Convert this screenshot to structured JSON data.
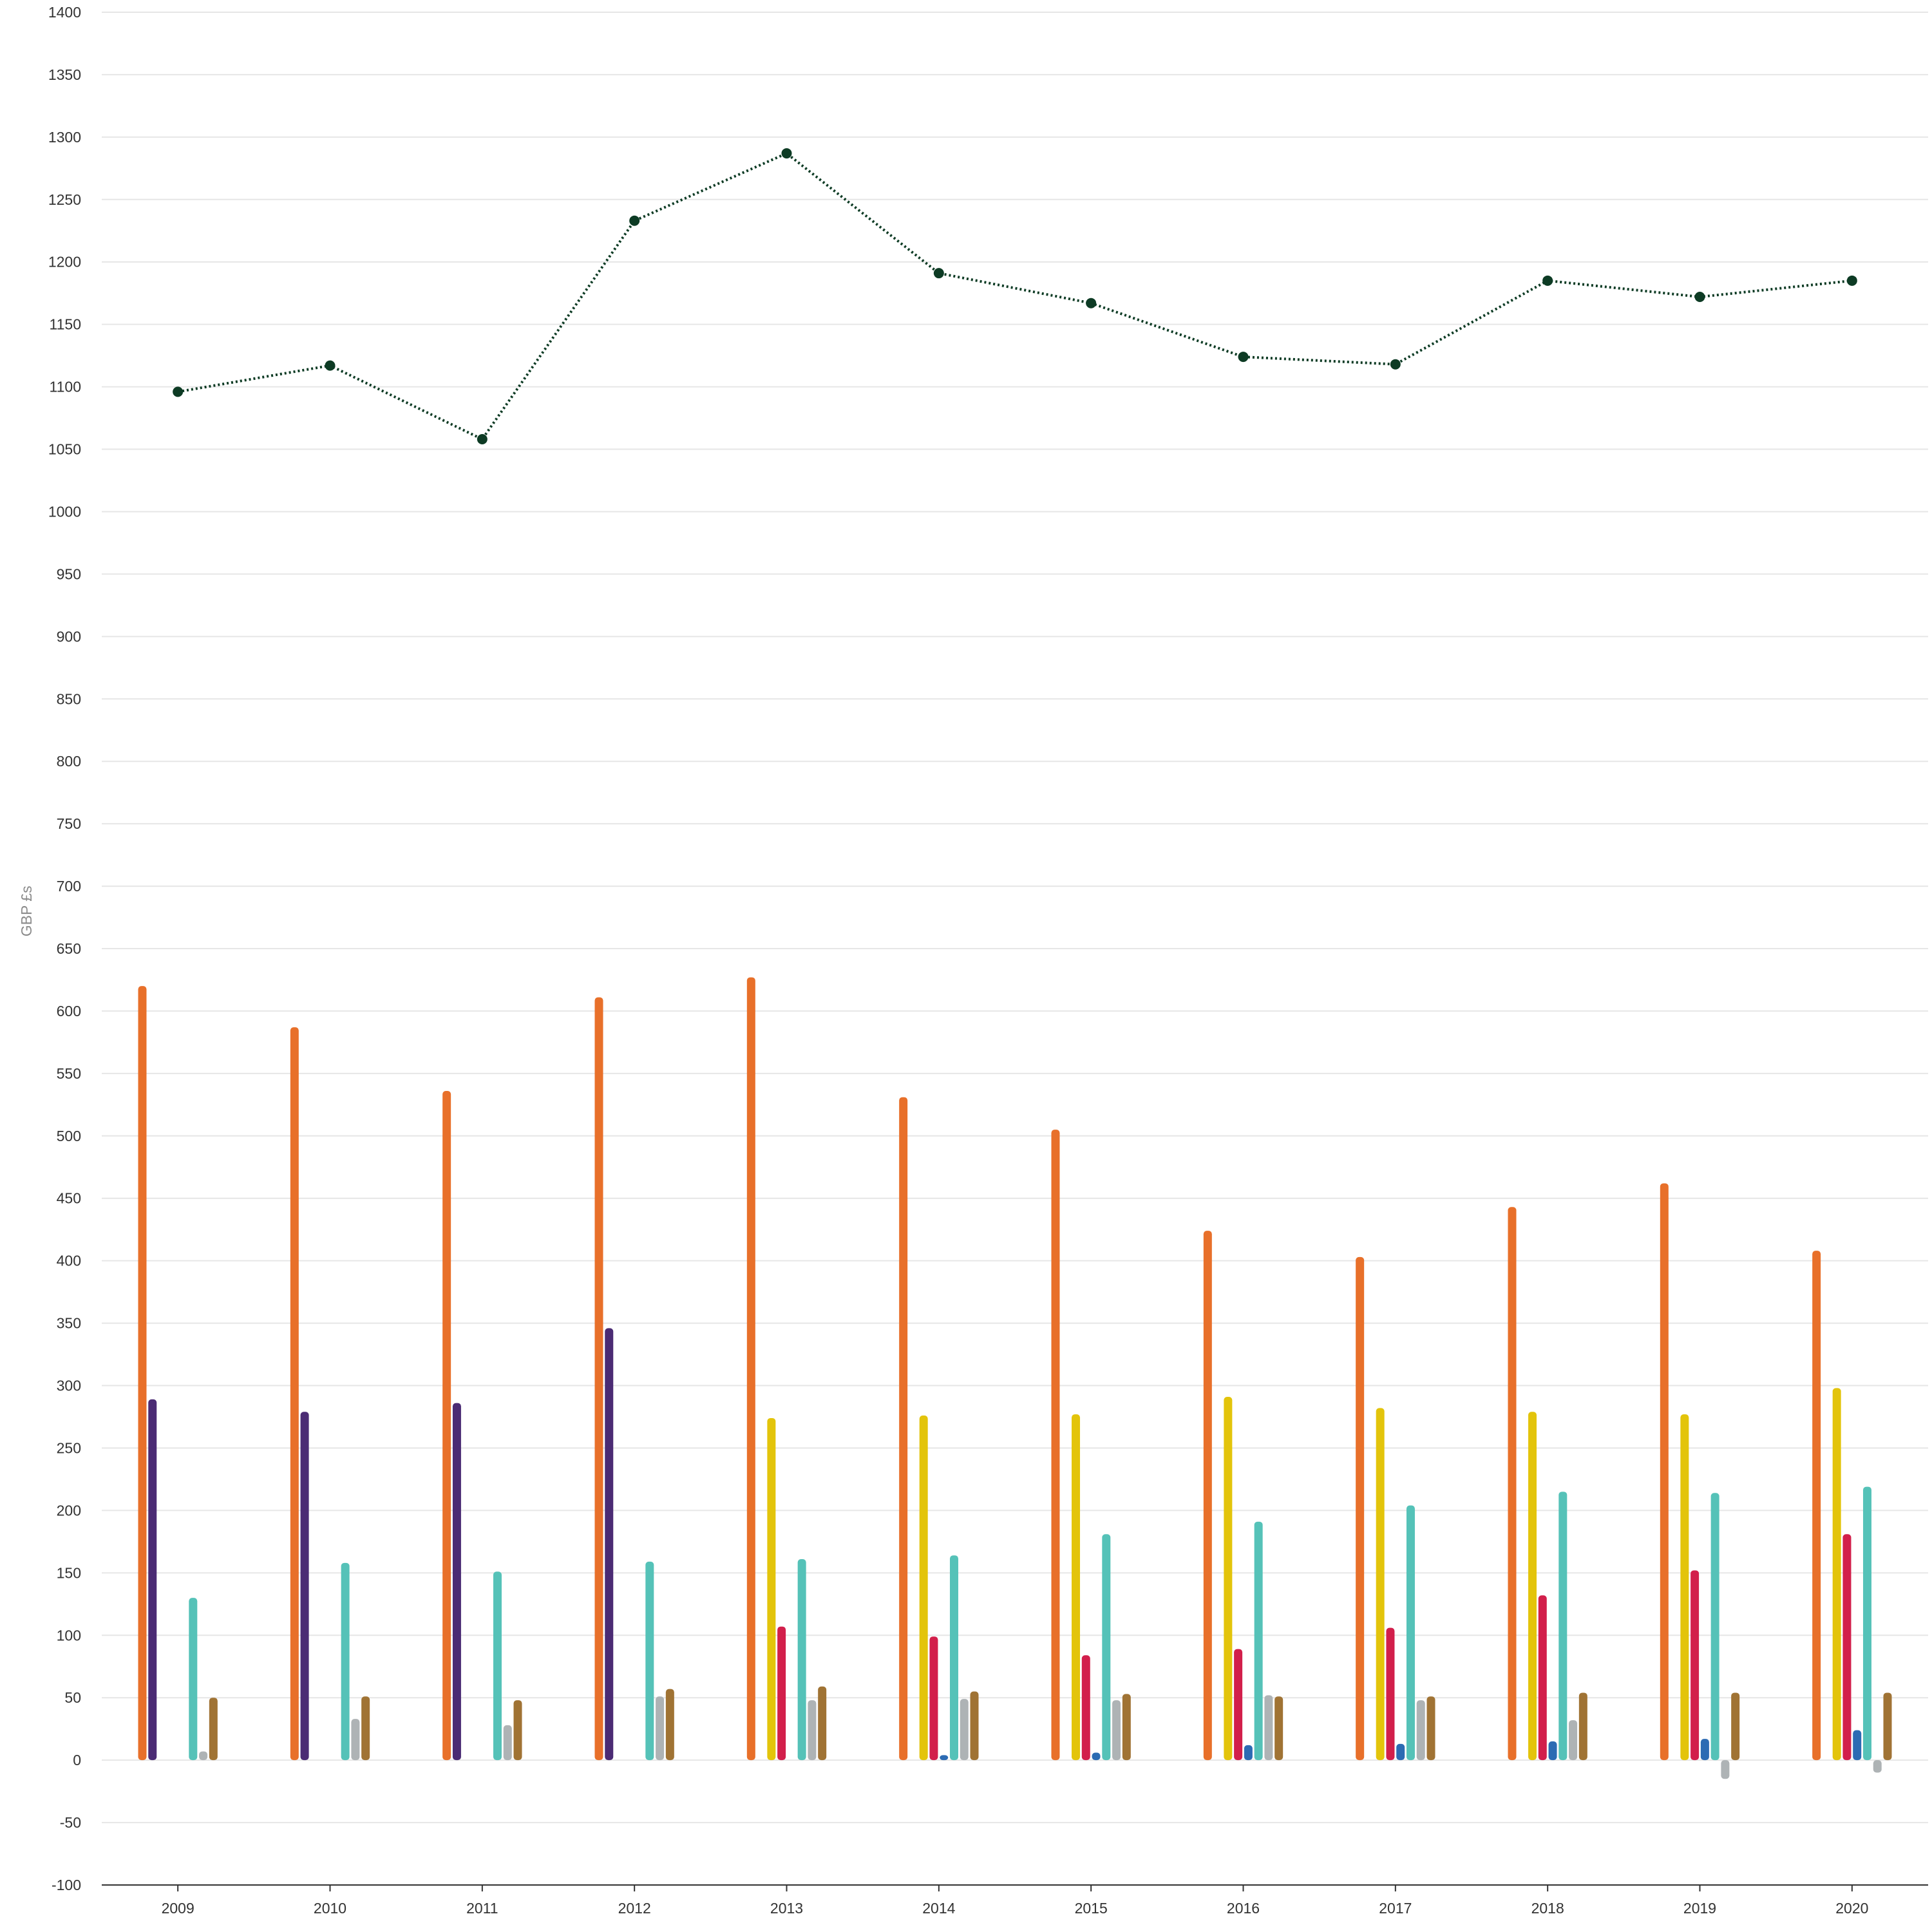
{
  "chart_data": {
    "type": "bar",
    "title": "",
    "xlabel": "",
    "ylabel": "GBP £s",
    "ylim": [
      -100,
      1400
    ],
    "yticks": [
      -100,
      -50,
      0,
      50,
      100,
      150,
      200,
      250,
      300,
      350,
      400,
      450,
      500,
      550,
      600,
      650,
      700,
      750,
      800,
      850,
      900,
      950,
      1000,
      1050,
      1100,
      1150,
      1200,
      1250,
      1300,
      1350,
      1400
    ],
    "grid": true,
    "legend": "none",
    "categories": [
      "2009",
      "2010",
      "2011",
      "2012",
      "2013",
      "2014",
      "2015",
      "2016",
      "2017",
      "2018",
      "2019",
      "2020"
    ],
    "series": [
      {
        "color": "#e8702a",
        "values": [
          620,
          587,
          536,
          611,
          627,
          531,
          505,
          424,
          403,
          443,
          462,
          408
        ]
      },
      {
        "color": "#4b2b74",
        "values": [
          289,
          279,
          286,
          346,
          null,
          null,
          null,
          null,
          null,
          null,
          null,
          null
        ]
      },
      {
        "color": "#e3c40b",
        "values": [
          null,
          null,
          null,
          null,
          274,
          276,
          277,
          291,
          282,
          279,
          277,
          298
        ]
      },
      {
        "color": "#d21f4b",
        "values": [
          null,
          null,
          null,
          null,
          107,
          99,
          84,
          89,
          106,
          132,
          152,
          181
        ]
      },
      {
        "color": "#2c6bb3",
        "values": [
          null,
          null,
          null,
          null,
          null,
          4,
          6,
          12,
          13,
          15,
          17,
          24
        ]
      },
      {
        "color": "#55c2b8",
        "values": [
          130,
          158,
          151,
          159,
          161,
          164,
          181,
          191,
          204,
          215,
          214,
          219
        ]
      },
      {
        "color": "#aeb3b5",
        "values": [
          7,
          33,
          28,
          51,
          48,
          49,
          48,
          52,
          48,
          32,
          -15,
          -10
        ]
      },
      {
        "color": "#a07334",
        "values": [
          50,
          51,
          48,
          57,
          59,
          55,
          53,
          51,
          51,
          54,
          54,
          54
        ]
      },
      {
        "type": "line",
        "color": "#0d3b24",
        "style": "dotted",
        "values": [
          1096,
          1117,
          1058,
          1233,
          1287,
          1191,
          1167,
          1124,
          1118,
          1185,
          1172,
          1185
        ]
      }
    ]
  }
}
